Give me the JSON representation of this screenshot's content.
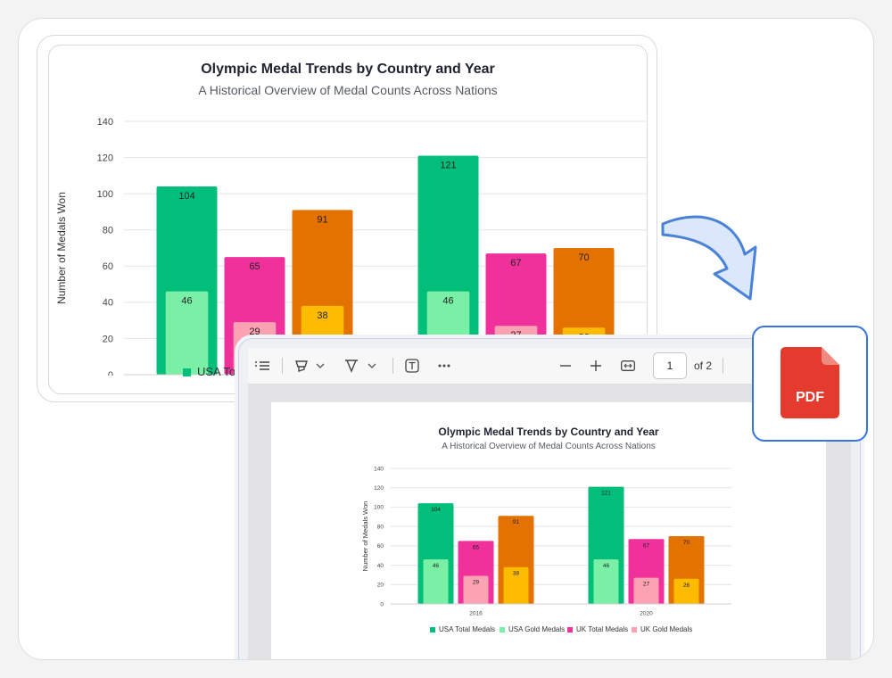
{
  "colors": {
    "usa_total": "#01bf7a",
    "usa_gold": "#79f0a5",
    "uk_total": "#f0319c",
    "uk_gold": "#fca2b2",
    "third_total": "#e47200",
    "third_gold": "#ffbb00",
    "pdf_red": "#e53b2e",
    "accent_blue": "#3575e0"
  },
  "chart_card": {
    "title": "Olympic Medal Trends by Country and Year",
    "subtitle": "A Historical Overview of Medal Counts Across Nations",
    "legend_partial": "USA Tot"
  },
  "viewer": {
    "toolbar": {
      "page_number": "1",
      "page_of": "of 2",
      "icons": [
        "list-icon",
        "highlight-icon",
        "chevron-down-icon",
        "draw-icon",
        "chevron-down-icon",
        "text-box-icon",
        "more-icon",
        "zoom-out-icon",
        "zoom-in-icon",
        "fit-width-icon"
      ]
    },
    "page": {
      "title": "Olympic Medal Trends by Country and Year",
      "subtitle": "A Historical Overview of Medal Counts Across Nations"
    }
  },
  "pdf_badge": {
    "label": "PDF"
  },
  "chart_data": [
    {
      "type": "bar",
      "title": "Olympic Medal Trends by Country and Year",
      "subtitle": "A Historical Overview of Medal Counts Across Nations",
      "ylabel": "Number of Medals Won",
      "ylim": [
        0,
        140
      ],
      "yticks": [
        0,
        20,
        40,
        60,
        80,
        100,
        120,
        140
      ],
      "categories": [
        "2016",
        "2020"
      ],
      "groups": [
        {
          "total_series": "USA Total Medals",
          "gold_series": "USA Gold Medals",
          "total": [
            104,
            121
          ],
          "gold": [
            46,
            46
          ]
        },
        {
          "total_series": "UK Total Medals",
          "gold_series": "UK Gold Medals",
          "total": [
            65,
            67
          ],
          "gold": [
            29,
            27
          ]
        },
        {
          "total_series": "",
          "gold_series": "",
          "total": [
            91,
            70
          ],
          "gold": [
            38,
            26
          ]
        }
      ],
      "legend": [
        "USA Total Medals",
        "USA Gold Medals",
        "UK Total Medals",
        "UK Gold Medals"
      ]
    }
  ]
}
